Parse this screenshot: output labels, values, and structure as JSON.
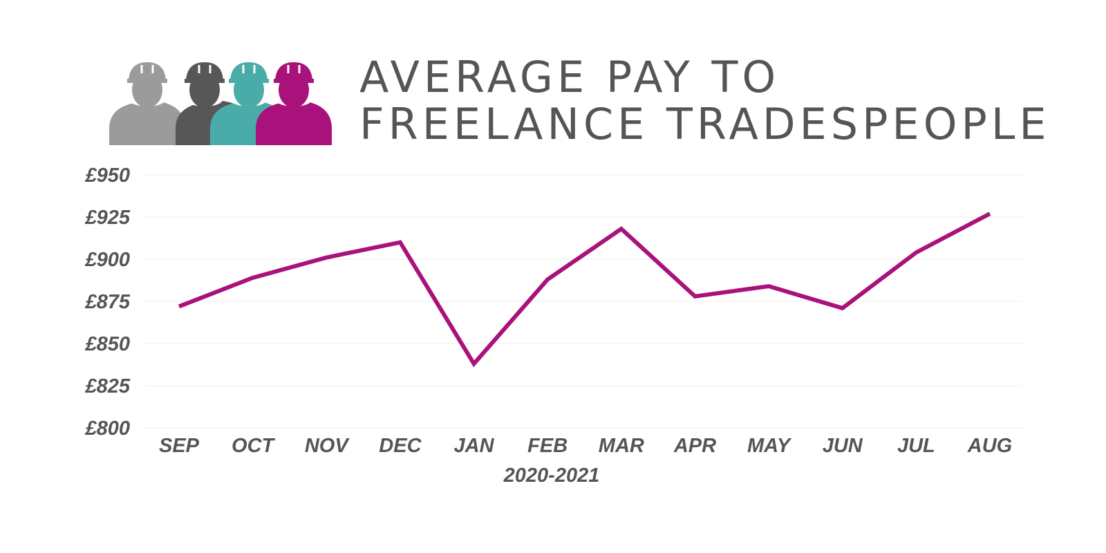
{
  "header": {
    "title_line1": "AVERAGE PAY TO",
    "title_line2": "FREELANCE TRADESPEOPLE",
    "logo_colors": [
      "#9b9b9b",
      "#575757",
      "#4aaca8",
      "#a8127a"
    ]
  },
  "chart_data": {
    "type": "line",
    "title": "AVERAGE PAY TO FREELANCE TRADESPEOPLE",
    "xlabel": "2020-2021",
    "ylabel": "",
    "categories": [
      "SEP",
      "OCT",
      "NOV",
      "DEC",
      "JAN",
      "FEB",
      "MAR",
      "APR",
      "MAY",
      "JUN",
      "JUL",
      "AUG"
    ],
    "series": [
      {
        "values": [
          872,
          889,
          901,
          910,
          838,
          888,
          918,
          878,
          884,
          871,
          904,
          927
        ],
        "color": "#a8127a"
      }
    ],
    "yticks": [
      800,
      825,
      850,
      875,
      900,
      925,
      950
    ],
    "ytick_labels": [
      "£800",
      "£825",
      "£850",
      "£875",
      "£900",
      "£925",
      "£950"
    ],
    "ylim": [
      800,
      950
    ],
    "grid": true,
    "legend": "none"
  }
}
